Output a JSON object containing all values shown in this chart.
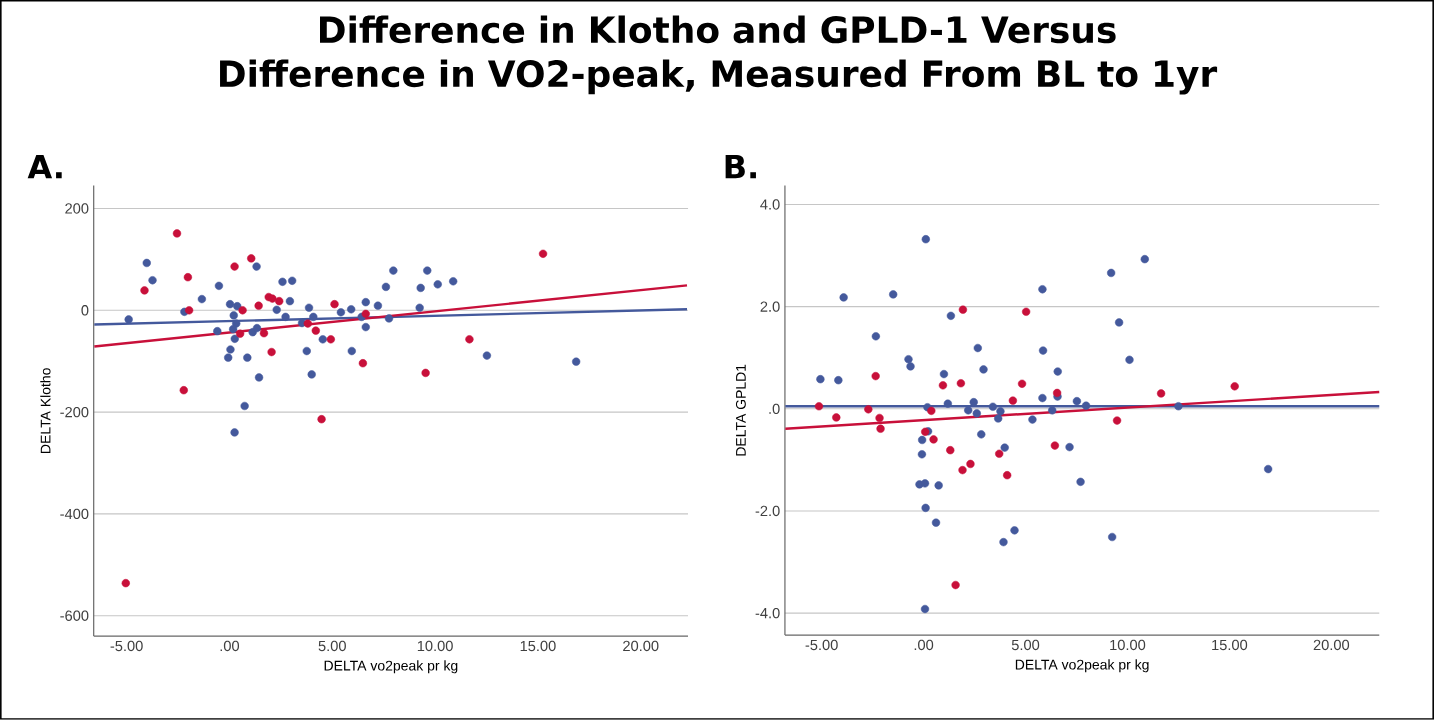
{
  "chart_data": [
    {
      "type": "scatter",
      "title": "Difference in Klotho and GPLD-1 Versus Difference in VO2-peak, Measured From BL to 1yr",
      "annotations": [
        "A."
      ],
      "xlabel": "DELTA vo2peak pr kg",
      "ylabel": "DELTA Klotho",
      "xlim": [
        -6.6,
        22.3
      ],
      "ylim": [
        -640,
        245
      ],
      "xticks": [
        {
          "value": -5,
          "label": "-5.00"
        },
        {
          "value": 0,
          "label": ".00"
        },
        {
          "value": 5,
          "label": "5.00"
        },
        {
          "value": 10,
          "label": "10.00"
        },
        {
          "value": 15,
          "label": "15.00"
        },
        {
          "value": 20,
          "label": "20.00"
        }
      ],
      "yticks": [
        -600,
        -400,
        -200,
        0,
        200
      ],
      "grid": "y",
      "series": [
        {
          "color": "#44599c",
          "marker": "circle",
          "x": [
            -4.9,
            -4.02,
            -3.74,
            -2.19,
            -1.34,
            -0.51,
            -0.59,
            0.03,
            0.38,
            0.21,
            0.33,
            0.18,
            0.26,
            0.05,
            -0.06,
            0.87,
            0.74,
            0.25,
            1.32,
            1.13,
            1.34,
            1.44,
            2.3,
            2.58,
            3.05,
            2.94,
            2.73,
            3.87,
            4.08,
            3.53,
            3.76,
            4.0,
            4.54,
            5.42,
            5.92,
            5.95,
            6.63,
            6.63,
            6.43,
            7.22,
            7.61,
            7.97,
            7.76,
            9.62,
            9.3,
            10.13,
            10.88,
            9.25,
            12.52,
            16.86
          ],
          "values": [
            -18,
            93,
            59,
            -3,
            22,
            48,
            -41,
            12,
            8,
            -10,
            -26,
            -37,
            -56,
            -77,
            -93,
            -93,
            -188,
            -240,
            86,
            -43,
            -35,
            -132,
            1,
            56,
            58,
            18,
            -13,
            5,
            -13,
            -25,
            -80,
            -126,
            -57,
            -4,
            2,
            -80,
            16,
            -33,
            -13,
            9,
            46,
            78,
            -16,
            78,
            44,
            51,
            57,
            5,
            -89,
            -101
          ]
        },
        {
          "color": "#c8103a",
          "marker": "circle",
          "x": [
            -5.04,
            -2.55,
            -4.13,
            -2.02,
            -1.96,
            -2.22,
            0.25,
            1.06,
            0.64,
            0.52,
            1.42,
            1.68,
            1.91,
            2.09,
            2.42,
            2.05,
            3.81,
            4.2,
            4.93,
            5.11,
            4.48,
            6.63,
            6.49,
            15.25,
            11.67,
            9.54
          ],
          "values": [
            -536,
            151,
            39,
            65,
            0,
            -157,
            86,
            102,
            0,
            -46,
            9,
            -45,
            26,
            23,
            18,
            -82,
            -26,
            -40,
            -57,
            12,
            -214,
            -7,
            -104,
            111,
            -57,
            -123
          ]
        },
        {
          "type": "line",
          "marker": "none",
          "color": "#44599c",
          "x": [
            -6.57,
            22.25
          ],
          "values": [
            -28,
            2
          ]
        },
        {
          "type": "line",
          "marker": "none",
          "color": "#c8103a",
          "x": [
            -6.57,
            22.25
          ],
          "values": [
            -71,
            49
          ]
        }
      ]
    },
    {
      "type": "scatter",
      "annotations": [
        "B."
      ],
      "xlabel": "DELTA vo2peak pr kg",
      "ylabel": "DELTA GPLD1",
      "xlim": [
        -6.8,
        22.35
      ],
      "ylim": [
        -4.43,
        4.37
      ],
      "xticks": [
        {
          "value": -5,
          "label": "-5.00"
        },
        {
          "value": 0,
          "label": ".00"
        },
        {
          "value": 5,
          "label": "5.00"
        },
        {
          "value": 10,
          "label": "10.00"
        },
        {
          "value": 15,
          "label": "15.00"
        },
        {
          "value": 20,
          "label": "20.00"
        }
      ],
      "yticks": [
        {
          "value": -4,
          "label": "-4.0"
        },
        {
          "value": -2,
          "label": "-2.0"
        },
        {
          "value": 0,
          "label": ".0"
        },
        {
          "value": 2,
          "label": "2.0"
        },
        {
          "value": 4,
          "label": "4.0"
        }
      ],
      "grid": "y",
      "series": [
        {
          "color": "#44599c",
          "marker": "circle",
          "x": [
            0.11,
            -3.92,
            -1.49,
            1.34,
            5.83,
            -2.34,
            2.66,
            5.86,
            -0.74,
            -0.64,
            2.94,
            6.58,
            -5.06,
            -4.18,
            1.0,
            6.57,
            5.83,
            7.52,
            0.19,
            1.19,
            2.46,
            2.19,
            2.61,
            3.4,
            3.77,
            3.66,
            5.34,
            6.31,
            2.83,
            0.22,
            -0.07,
            -0.08,
            3.98,
            7.16,
            -0.2,
            0.07,
            0.74,
            0.1,
            0.61,
            4.46,
            3.92,
            0.07,
            10.85,
            9.2,
            9.59,
            10.1,
            7.97,
            12.5,
            7.7,
            16.9,
            9.25
          ],
          "values": [
            3.32,
            2.18,
            2.24,
            1.82,
            2.34,
            1.42,
            1.19,
            1.14,
            0.97,
            0.83,
            0.77,
            0.73,
            0.58,
            0.56,
            0.68,
            0.24,
            0.21,
            0.15,
            0.03,
            0.1,
            0.13,
            -0.03,
            -0.09,
            0.04,
            -0.05,
            -0.19,
            -0.21,
            -0.03,
            -0.5,
            -0.44,
            -0.61,
            -0.89,
            -0.76,
            -0.75,
            -1.48,
            -1.46,
            -1.5,
            -1.94,
            -2.23,
            -2.38,
            -2.61,
            -3.92,
            2.93,
            2.66,
            1.69,
            0.96,
            0.06,
            0.05,
            -1.43,
            -1.18,
            -2.51
          ]
        },
        {
          "color": "#c8103a",
          "marker": "circle",
          "x": [
            -5.13,
            -4.28,
            -2.71,
            -2.35,
            -2.16,
            -2.11,
            1.93,
            5.03,
            0.95,
            1.83,
            4.83,
            4.38,
            6.55,
            0.38,
            0.08,
            0.49,
            1.31,
            3.71,
            2.3,
            1.91,
            4.1,
            6.44,
            1.57,
            11.65,
            15.26,
            9.49
          ],
          "values": [
            0.05,
            -0.17,
            -0.01,
            0.64,
            -0.18,
            -0.39,
            1.94,
            1.9,
            0.46,
            0.5,
            0.49,
            0.16,
            0.31,
            -0.04,
            -0.45,
            -0.6,
            -0.81,
            -0.88,
            -1.08,
            -1.2,
            -1.3,
            -0.72,
            -3.45,
            0.3,
            0.44,
            -0.23
          ]
        },
        {
          "type": "line",
          "marker": "none",
          "color": "#44599c",
          "x": [
            -6.78,
            22.35
          ],
          "values": [
            0.05,
            0.05
          ]
        },
        {
          "type": "line",
          "marker": "none",
          "color": "#c8103a",
          "x": [
            -6.78,
            22.35
          ],
          "values": [
            -0.39,
            0.33
          ]
        }
      ]
    }
  ]
}
